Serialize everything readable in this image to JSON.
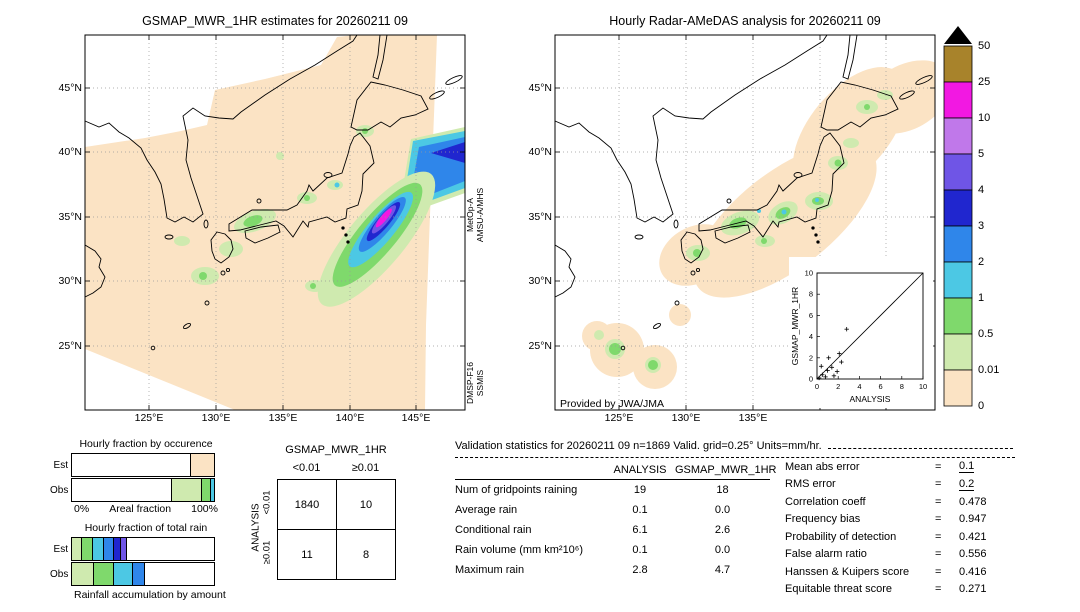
{
  "panels": {
    "left_map": {
      "title": "GSMAP_MWR_1HR estimates for 20260211 09",
      "lat_ticks": [
        "45°N",
        "40°N",
        "35°N",
        "30°N",
        "25°N"
      ],
      "lon_ticks": [
        "125°E",
        "130°E",
        "135°E",
        "140°E",
        "145°E"
      ],
      "sensor_a_1": "MetOp-A",
      "sensor_a_2": "AMSU-A/MHS",
      "sensor_b_1": "DMSP-F16",
      "sensor_b_2": "SSMIS"
    },
    "right_map": {
      "title": "Hourly Radar-AMeDAS analysis for 20260211 09",
      "lat_ticks": [
        "45°N",
        "40°N",
        "35°N",
        "30°N",
        "25°N"
      ],
      "lon_ticks": [
        "125°E",
        "130°E",
        "135°E"
      ],
      "credit": "Provided by JWA/JMA"
    }
  },
  "legend": {
    "units": "mm/hr",
    "tick_labels": [
      "50",
      "25",
      "10",
      "5",
      "4",
      "3",
      "2",
      "1",
      "0.5",
      "0.01",
      "0"
    ],
    "block_colors": [
      "#a8832b",
      "#f218e2",
      "#c078ea",
      "#6f55e6",
      "#2026cf",
      "#2f86ea",
      "#4cc8e4",
      "#7fd96c",
      "#cfeaaf",
      "#fbe3c4"
    ],
    "overflow_color": "#000000"
  },
  "chart_data": [
    {
      "type": "bar",
      "stacked": true,
      "orientation": "horizontal",
      "title": "Hourly fraction by occurence",
      "xlabel": "Areal fraction",
      "x_min_label": "0%",
      "x_max_label": "100%",
      "categories": [
        "Est",
        "Obs"
      ],
      "series": [
        {
          "name": "Est",
          "segments": [
            {
              "class": "no rain",
              "pct": 83,
              "color": "#ffffff"
            },
            {
              "class": "0-0.01",
              "pct": 17,
              "color": "#fbe3c4"
            }
          ]
        },
        {
          "name": "Obs",
          "segments": [
            {
              "class": "no rain",
              "pct": 70,
              "color": "#ffffff"
            },
            {
              "class": "0.01-0.5",
              "pct": 21,
              "color": "#cfeaaf"
            },
            {
              "class": "0.5-1",
              "pct": 6,
              "color": "#7fd96c"
            },
            {
              "class": "1-2",
              "pct": 3,
              "color": "#4cc8e4"
            }
          ]
        }
      ]
    },
    {
      "type": "bar",
      "stacked": true,
      "orientation": "horizontal",
      "title": "Hourly fraction of total rain",
      "xlabel": "Rainfall accumulation by amount",
      "categories": [
        "Est",
        "Obs"
      ],
      "series": [
        {
          "name": "Est",
          "segments": [
            {
              "class": "0.01-0.5",
              "pct": 6,
              "color": "#cfeaaf"
            },
            {
              "class": "0.5-1",
              "pct": 8,
              "color": "#7fd96c"
            },
            {
              "class": "1-2",
              "pct": 8,
              "color": "#4cc8e4"
            },
            {
              "class": "2-3",
              "pct": 7,
              "color": "#2f86ea"
            },
            {
              "class": "3-4",
              "pct": 5,
              "color": "#2026cf"
            },
            {
              "class": "4-5",
              "pct": 4,
              "color": "#6f55e6"
            },
            {
              "class": "rest",
              "pct": 62,
              "color": "#ffffff"
            }
          ]
        },
        {
          "name": "Obs",
          "segments": [
            {
              "class": "0.01-0.5",
              "pct": 15,
              "color": "#cfeaaf"
            },
            {
              "class": "0.5-1",
              "pct": 14,
              "color": "#7fd96c"
            },
            {
              "class": "1-2",
              "pct": 13,
              "color": "#4cc8e4"
            },
            {
              "class": "2-3",
              "pct": 9,
              "color": "#2f86ea"
            },
            {
              "class": "rest",
              "pct": 49,
              "color": "#ffffff"
            }
          ]
        }
      ]
    },
    {
      "type": "scatter",
      "xlabel": "ANALYSIS",
      "ylabel": "GSMAP_MWR_1HR",
      "xlim": [
        0,
        10
      ],
      "ylim": [
        0,
        10
      ],
      "ticks": [
        0,
        2,
        4,
        6,
        8,
        10
      ],
      "diagonal": true,
      "points": [
        [
          0.2,
          0.1
        ],
        [
          0.5,
          0.4
        ],
        [
          0.8,
          0.2
        ],
        [
          1.0,
          0.8
        ],
        [
          1.4,
          1.1
        ],
        [
          1.9,
          0.7
        ],
        [
          2.3,
          1.6
        ],
        [
          1.1,
          2.0
        ],
        [
          0.4,
          1.2
        ],
        [
          1.6,
          0.3
        ],
        [
          2.1,
          2.4
        ],
        [
          2.8,
          4.7
        ]
      ]
    }
  ],
  "contingency": {
    "title": "GSMAP_MWR_1HR",
    "col_labels": [
      "<0.01",
      "≥0.01"
    ],
    "row_axis": "ANALYSIS",
    "row_labels": [
      "<0.01",
      "≥0.01"
    ],
    "values": [
      [
        1840,
        10
      ],
      [
        11,
        8
      ]
    ]
  },
  "stats": {
    "header": "Validation statistics for 20260211 09 n=1869 Valid. grid=0.25° Units=mm/hr.",
    "table": {
      "columns": [
        "ANALYSIS",
        "GSMAP_MWR_1HR"
      ],
      "rows": [
        {
          "label": "Num of gridpoints raining",
          "analysis": "19",
          "gsmap": "18"
        },
        {
          "label": "Average rain",
          "analysis": "0.1",
          "gsmap": "0.0"
        },
        {
          "label": "Conditional rain",
          "analysis": "6.1",
          "gsmap": "2.6"
        },
        {
          "label": "Rain volume (mm km²10⁶)",
          "analysis": "0.1",
          "gsmap": "0.0"
        },
        {
          "label": "Maximum rain",
          "analysis": "2.8",
          "gsmap": "4.7"
        }
      ]
    },
    "scores": [
      {
        "label": "Mean abs error",
        "value": "0.1",
        "underline": true
      },
      {
        "label": "RMS error",
        "value": "0.2",
        "underline": true
      },
      {
        "label": "Correlation coeff",
        "value": "0.478"
      },
      {
        "label": "Frequency bias",
        "value": "0.947"
      },
      {
        "label": "Probability of detection",
        "value": "0.421"
      },
      {
        "label": "False alarm ratio",
        "value": "0.556"
      },
      {
        "label": "Hanssen & Kuipers score",
        "value": "0.416"
      },
      {
        "label": "Equitable threat score",
        "value": "0.271"
      }
    ]
  }
}
